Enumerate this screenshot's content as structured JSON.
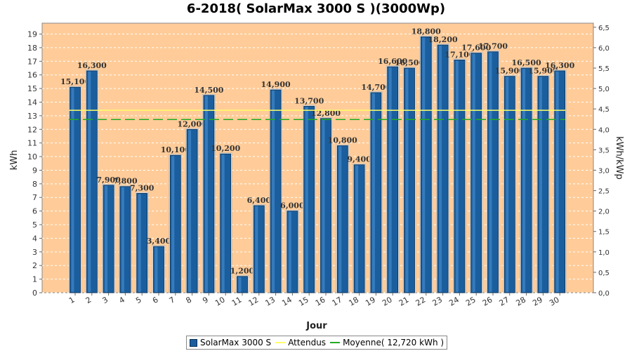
{
  "chart_data": {
    "type": "bar",
    "title": "6-2018( SolarMax 3000 S )(3000Wp)",
    "xlabel": "Jour",
    "ylabel": "kWh",
    "ylabel_right": "kWh/kWp",
    "categories": [
      "1",
      "2",
      "3",
      "4",
      "5",
      "6",
      "7",
      "8",
      "9",
      "10",
      "11",
      "12",
      "13",
      "14",
      "15",
      "16",
      "17",
      "18",
      "19",
      "20",
      "21",
      "22",
      "23",
      "24",
      "25",
      "26",
      "27",
      "28",
      "29",
      "30"
    ],
    "series": [
      {
        "name": "SolarMax 3000 S",
        "values": [
          15.1,
          16.3,
          7.9,
          7.8,
          7.3,
          3.4,
          10.1,
          12.0,
          14.5,
          10.2,
          1.2,
          6.4,
          14.9,
          6.0,
          13.7,
          12.8,
          10.8,
          9.4,
          14.7,
          16.6,
          16.5,
          18.8,
          18.2,
          17.1,
          17.6,
          17.7,
          15.9,
          16.5,
          15.9,
          16.3
        ],
        "color": "#1a5e9e"
      }
    ],
    "data_labels": [
      "15,100",
      "16,300",
      "7,900",
      "7,800",
      "7,300",
      "3,400",
      "10,100",
      "12,000",
      "14,500",
      "10,200",
      "1,200",
      "6,400",
      "14,900",
      "6,000",
      "13,700",
      "12,800",
      "10,800",
      "9,400",
      "14,700",
      "16,600",
      "16,500",
      "18,800",
      "18,200",
      "17,100",
      "17,600",
      "17,700",
      "15,900",
      "16,500",
      "15,900",
      "16,300"
    ],
    "y_ticks": [
      "0",
      "1",
      "2",
      "3",
      "4",
      "5",
      "6",
      "7",
      "8",
      "9",
      "10",
      "11",
      "12",
      "13",
      "14",
      "15",
      "16",
      "17",
      "18",
      "19"
    ],
    "ylim": [
      0,
      19.8
    ],
    "y_right_ticks": [
      "0,0",
      "0,5",
      "1,0",
      "1,5",
      "2,0",
      "2,5",
      "3,0",
      "3,5",
      "4,0",
      "4,5",
      "5,0",
      "5,5",
      "6,0",
      "6,5"
    ],
    "y_right_lim": [
      0,
      6.6
    ],
    "attendus_value": 13.4,
    "moyenne_value": 12.72,
    "colors": {
      "plot_bg": "#ffcc99",
      "bar": "#1a5e9e",
      "bar_edge": "#0a2e50",
      "attendus": "#ffff66",
      "moyenne": "#22aa22",
      "grid": "#ffffff"
    },
    "grid": true,
    "legend_position": "bottom-center"
  },
  "legend": {
    "items": [
      {
        "label": "SolarMax 3000 S",
        "kind": "box"
      },
      {
        "label": "Attendus",
        "kind": "line-attendus"
      },
      {
        "label": "Moyenne( 12,720 kWh )",
        "kind": "line-moyenne"
      }
    ]
  }
}
